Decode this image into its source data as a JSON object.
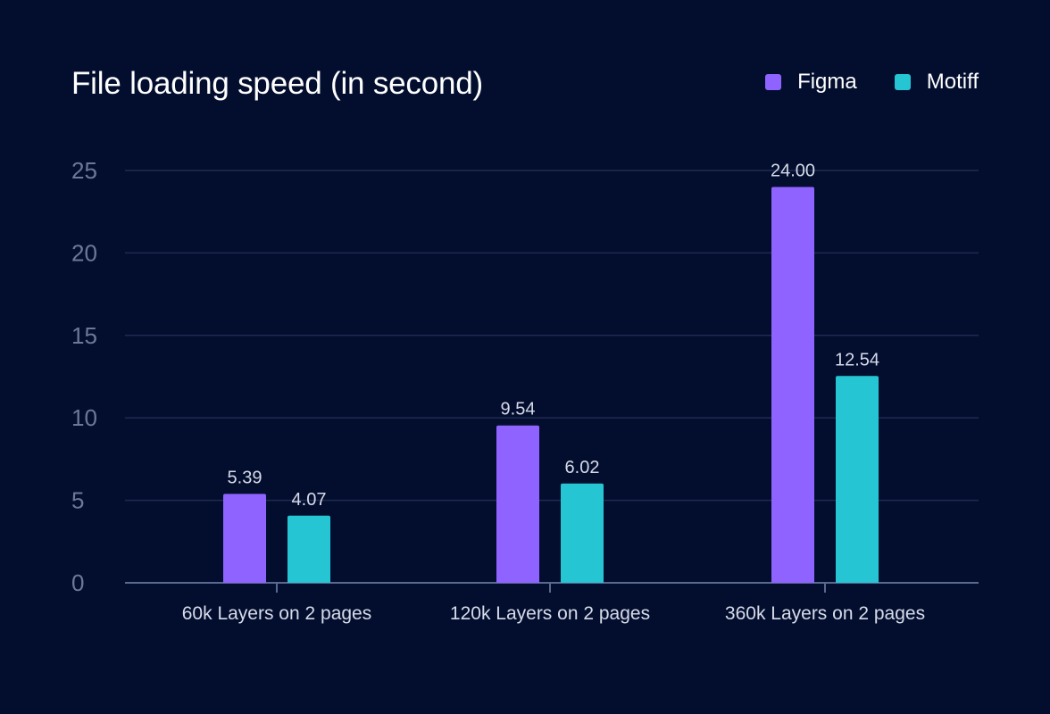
{
  "title": "File loading speed (in second)",
  "legend": [
    {
      "name": "Figma",
      "color": "#8f63ff"
    },
    {
      "name": "Motiff",
      "color": "#26c5d3"
    }
  ],
  "chart_data": {
    "type": "bar",
    "title": "File loading speed (in second)",
    "categories": [
      "60k Layers on 2 pages",
      "120k Layers on 2 pages",
      "360k Layers on 2 pages"
    ],
    "series": [
      {
        "name": "Figma",
        "values": [
          5.39,
          9.54,
          24.0
        ],
        "labels": [
          "5.39",
          "9.54",
          "24.00"
        ],
        "color": "#8f63ff"
      },
      {
        "name": "Motiff",
        "values": [
          4.07,
          6.02,
          12.54
        ],
        "labels": [
          "4.07",
          "6.02",
          "12.54"
        ],
        "color": "#26c5d3"
      }
    ],
    "yticks": [
      0,
      5,
      10,
      15,
      20,
      25
    ],
    "ylim": [
      0,
      25
    ],
    "xlabel": "",
    "ylabel": "",
    "grid": true,
    "legend_position": "top-right"
  }
}
